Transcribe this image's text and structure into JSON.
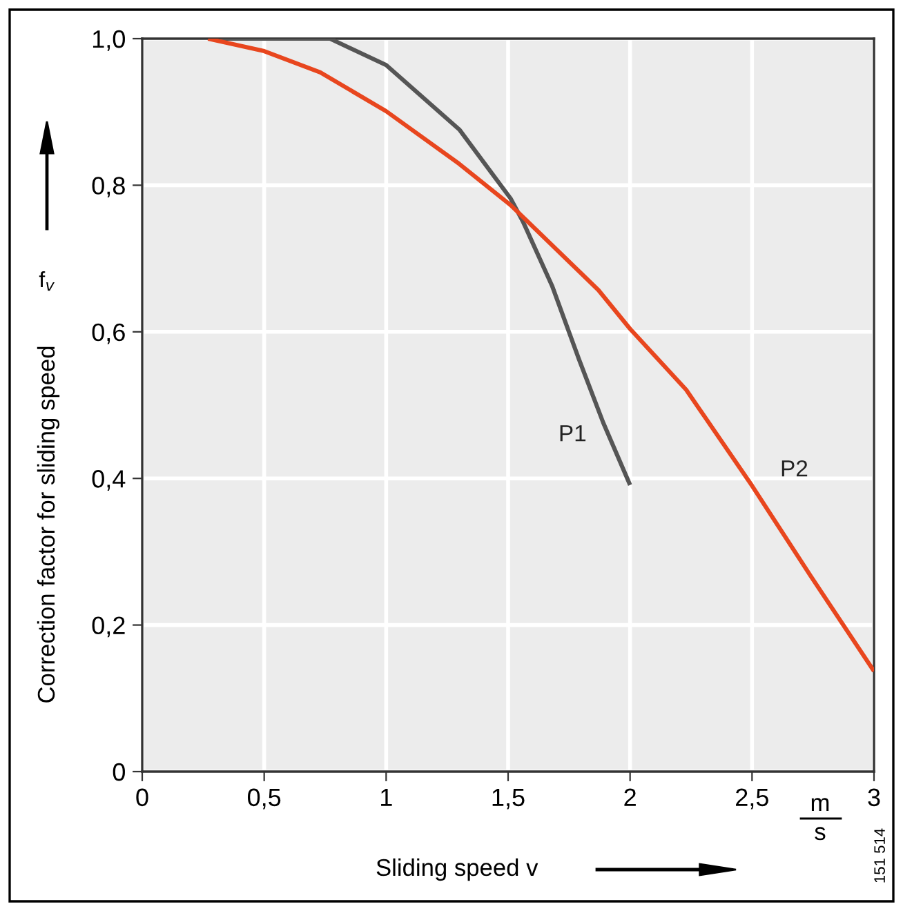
{
  "chart_data": {
    "type": "line",
    "ylabel": "Correction factor for sliding speed",
    "xlabel": "Sliding speed v",
    "annotations": [
      "f$_{v}$",
      "m",
      "s",
      "151 514"
    ],
    "xlim": [
      0,
      3
    ],
    "ylim": [
      0,
      1
    ],
    "xticks": [
      0,
      {
        "value": 0.5,
        "label": "0,5"
      },
      1,
      {
        "value": 1.5,
        "label": "1,5"
      },
      2,
      {
        "value": 2.5,
        "label": "2,5"
      },
      3
    ],
    "yticks": [
      0,
      {
        "value": 0.2,
        "label": "0,2"
      },
      {
        "value": 0.4,
        "label": "0,4"
      },
      {
        "value": 0.6,
        "label": "0,6"
      },
      {
        "value": 0.8,
        "label": "0,8"
      },
      {
        "value": 1.0,
        "label": "1,0"
      }
    ],
    "grid": true,
    "legend": false,
    "marker": "none",
    "line_style": "solid",
    "series": [
      {
        "name": "P1",
        "color": "#555555",
        "x": [
          0.32,
          0.77,
          1.0,
          1.3,
          1.51,
          1.56,
          1.68,
          1.79,
          1.89,
          2.0
        ],
        "values": [
          1.0,
          1.0,
          0.964,
          0.876,
          0.782,
          0.751,
          0.663,
          0.563,
          0.476,
          0.391
        ]
      },
      {
        "name": "P2",
        "color": "#e8461e",
        "x": [
          0.27,
          0.5,
          0.73,
          1.0,
          1.3,
          1.51,
          1.87,
          2.0,
          2.23,
          2.5,
          2.74,
          3.0
        ],
        "values": [
          1.0,
          0.983,
          0.954,
          0.901,
          0.829,
          0.773,
          0.657,
          0.604,
          0.521,
          0.39,
          0.267,
          0.137
        ]
      }
    ]
  }
}
